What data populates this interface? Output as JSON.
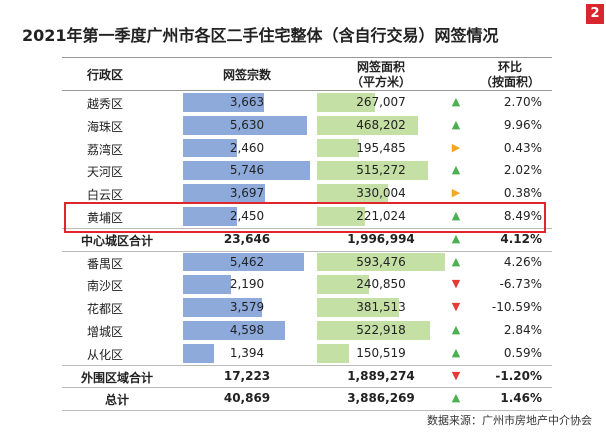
{
  "title": "2021年第一季度广州市各区二手住宅整体（含自行交易）网签情况",
  "badge": "2",
  "header": {
    "district": "行政区",
    "count": "网签宗数",
    "area": [
      "网签面积",
      "（平方米）"
    ],
    "change": [
      "环比",
      "（按面积）"
    ]
  },
  "rows": [
    {
      "district": "越秀区",
      "count": "3,663",
      "area": "267,007",
      "trend": "up",
      "change": "2.70%"
    },
    {
      "district": "海珠区",
      "count": "5,630",
      "area": "468,202",
      "trend": "up",
      "change": "9.96%"
    },
    {
      "district": "荔湾区",
      "count": "2,460",
      "area": "195,485",
      "trend": "flat",
      "change": "0.43%"
    },
    {
      "district": "天河区",
      "count": "5,746",
      "area": "515,272",
      "trend": "up",
      "change": "2.02%"
    },
    {
      "district": "白云区",
      "count": "3,697",
      "area": "330,004",
      "trend": "flat",
      "change": "0.38%"
    },
    {
      "district": "黄埔区",
      "count": "2,450",
      "area": "221,024",
      "trend": "up",
      "change": "8.49%",
      "highlight": true
    },
    {
      "district": "中心城区合计",
      "count": "23,646",
      "area": "1,996,994",
      "trend": "up",
      "change": "4.12%",
      "total": true
    },
    {
      "district": "番禺区",
      "count": "5,462",
      "area": "593,476",
      "trend": "up",
      "change": "4.26%"
    },
    {
      "district": "南沙区",
      "count": "2,190",
      "area": "240,850",
      "trend": "down",
      "change": "-6.73%"
    },
    {
      "district": "花都区",
      "count": "3,579",
      "area": "381,513",
      "trend": "down",
      "change": "-10.59%"
    },
    {
      "district": "增城区",
      "count": "4,598",
      "area": "522,918",
      "trend": "up",
      "change": "2.84%"
    },
    {
      "district": "从化区",
      "count": "1,394",
      "area": "150,519",
      "trend": "up",
      "change": "0.59%"
    },
    {
      "district": "外围区域合计",
      "count": "17,223",
      "area": "1,889,274",
      "trend": "down",
      "change": "-1.20%",
      "total": true
    },
    {
      "district": "总计",
      "count": "40,869",
      "area": "3,886,269",
      "trend": "up",
      "change": "1.46%",
      "total": true
    }
  ],
  "source": "数据来源：广州市房地产中介协会"
}
